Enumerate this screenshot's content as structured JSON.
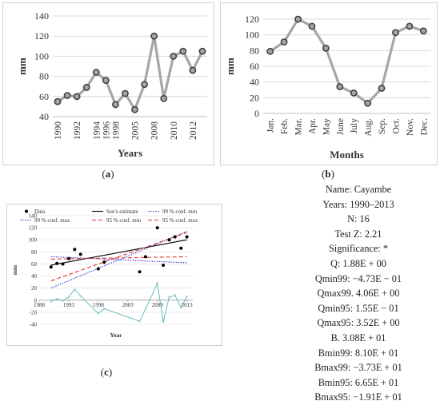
{
  "panel_a_label": "(a)",
  "panel_b_label": "(b)",
  "panel_c_label": "(c)",
  "stats": [
    "Name: Cayambe",
    "Years: 1990–2013",
    "N: 16",
    "Test Z: 2.21",
    "Significance: *",
    "Q: 1.88E + 00",
    "Qmin99: −4.73E − 01",
    "Qmax99. 4.06E + 00",
    "Qmin95: 1.55E − 01",
    "Qmax95: 3.52E + 00",
    "B. 3.08E + 01",
    "Bmin99: 8.10E + 01",
    "Bmax99: −3.73E + 01",
    "Bmin95: 6.65E + 01",
    "Bmax95: −1.91E + 01"
  ],
  "chart_data": [
    {
      "type": "line",
      "xlabel": "Years",
      "ylabel": "mm",
      "ylim": [
        40,
        140
      ],
      "yticks": [
        "40",
        "60",
        "80",
        "100",
        "120",
        "140"
      ],
      "categories": [
        "1990",
        "1991",
        "1992",
        "1993",
        "1994",
        "1995",
        "1998",
        "1999",
        "2005",
        "2006",
        "2008",
        "2009",
        "2010",
        "2011",
        "2012",
        "2013"
      ],
      "tick_labels": [
        "1990",
        "1992",
        "1994",
        "1996",
        "1998",
        "2005",
        "2008",
        "2010",
        "2012"
      ],
      "values": [
        55,
        61,
        60,
        69,
        84,
        76,
        52,
        63,
        47,
        72,
        120,
        58,
        100,
        105,
        86,
        105
      ],
      "colors": {
        "line": "#a6a6a6",
        "marker": "#a6a6a6",
        "marker_edge": "#404040"
      }
    },
    {
      "type": "line",
      "xlabel": "Months",
      "ylabel": "mm",
      "ylim": [
        0,
        120
      ],
      "yticks": [
        "0",
        "20",
        "40",
        "60",
        "80",
        "100",
        "120"
      ],
      "categories": [
        "Jan.",
        "Feb.",
        "Mar.",
        "Apr.",
        "May",
        "June",
        "July",
        "Aug.",
        "Sep.",
        "Oct.",
        "Nov.",
        "Dec."
      ],
      "values": [
        79,
        91,
        120,
        111,
        83,
        34,
        26,
        13,
        32,
        103,
        111,
        105
      ],
      "colors": {
        "line": "#a6a6a6",
        "marker": "#a6a6a6",
        "marker_edge": "#404040"
      }
    },
    {
      "type": "scatter",
      "xlabel": "Year",
      "ylabel": "mm",
      "xlim": [
        1988,
        2014
      ],
      "ylim": [
        -40,
        140
      ],
      "xticks": [
        "1988",
        "1993",
        "1998",
        "2003",
        "2008",
        "2013"
      ],
      "yticks": [
        "-40",
        "-20",
        "0",
        "20",
        "40",
        "60",
        "80",
        "100",
        "120",
        "140"
      ],
      "legend": [
        "Data",
        "Sen's estimate",
        "99 % conf. min",
        "99 % conf. max",
        "95 % conf. min",
        "95 % conf. max"
      ],
      "points": {
        "x": [
          1990,
          1991,
          1992,
          1993,
          1994,
          1995,
          1998,
          1999,
          2005,
          2006,
          2008,
          2009,
          2010,
          2011,
          2012,
          2013
        ],
        "y": [
          55,
          61,
          60,
          69,
          84,
          76,
          52,
          63,
          47,
          72,
          120,
          58,
          100,
          105,
          86,
          105
        ]
      },
      "residuals": {
        "x": [
          1990,
          1991,
          1992,
          1993,
          1994,
          1995,
          1998,
          1999,
          2005,
          2006,
          2008,
          2009,
          2010,
          2011,
          2012,
          2013
        ],
        "y": [
          -2,
          2,
          -1,
          5,
          18,
          7,
          -22,
          -14,
          -35,
          -15,
          28,
          -36,
          5,
          8,
          -12,
          6
        ]
      },
      "lines": [
        {
          "name": "Sen's estimate",
          "x": [
            1990,
            2013
          ],
          "y": [
            58,
            100
          ],
          "color": "#000000",
          "dash": "solid"
        },
        {
          "name": "99 % conf. min",
          "x": [
            1990,
            2013
          ],
          "y": [
            72,
            62
          ],
          "color": "#3333cc",
          "dash": "dot"
        },
        {
          "name": "99 % conf. max",
          "x": [
            1990,
            2013
          ],
          "y": [
            20,
            114
          ],
          "color": "#3333cc",
          "dash": "dot"
        },
        {
          "name": "95 % conf. min",
          "x": [
            1990,
            2013
          ],
          "y": [
            68,
            72
          ],
          "color": "#dd3333",
          "dash": "dash"
        },
        {
          "name": "95 % conf. max",
          "x": [
            1990,
            2013
          ],
          "y": [
            32,
            112
          ],
          "color": "#dd3333",
          "dash": "dash"
        }
      ],
      "colors": {
        "points": "#000000",
        "residuals": "#5fb3b3"
      }
    }
  ]
}
